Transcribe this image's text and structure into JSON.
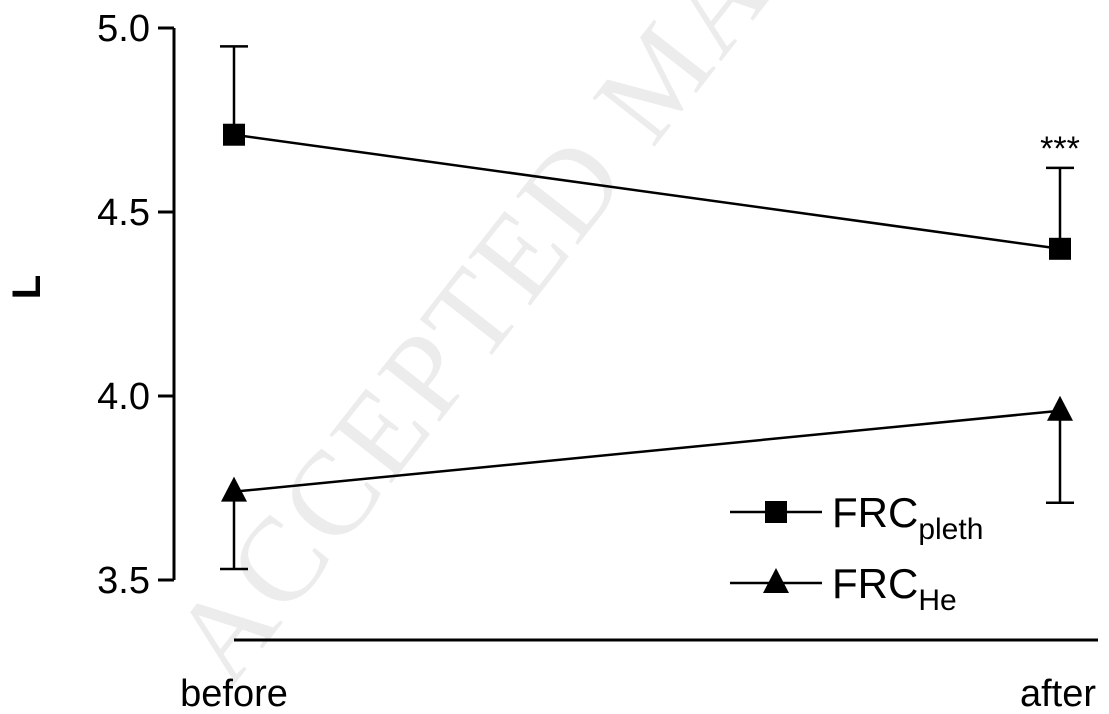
{
  "chart_data": {
    "type": "line",
    "categories": [
      "before",
      "after"
    ],
    "ylabel": "L",
    "ylim": [
      3.5,
      5.0
    ],
    "yticks": [
      "3.5",
      "4.0",
      "4.5",
      "5.0"
    ],
    "grid": false,
    "legend_position": "bottom-right",
    "series": [
      {
        "name": "FRCpleth",
        "base": "FRC",
        "sub": "pleth",
        "marker": "square",
        "values": [
          4.71,
          4.4
        ],
        "error_upper": [
          4.95,
          4.62
        ]
      },
      {
        "name": "FRCHe",
        "base": "FRC",
        "sub": "He",
        "marker": "triangle",
        "values": [
          3.74,
          3.96
        ],
        "error_lower": [
          3.53,
          3.71
        ]
      }
    ],
    "annotations": [
      {
        "text": "***",
        "category": "after",
        "series": "FRCpleth"
      }
    ],
    "watermark": "ACCEPTED MANUSCRIPT"
  }
}
